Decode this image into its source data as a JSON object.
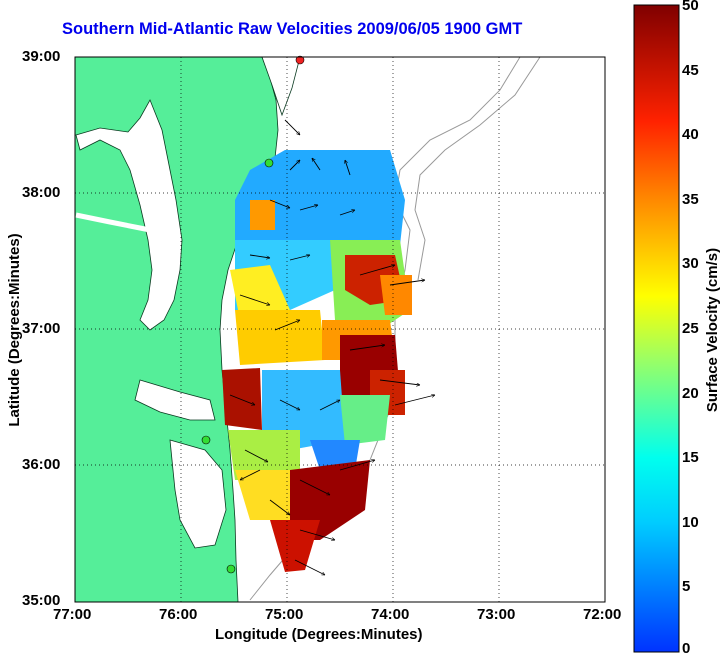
{
  "title": "Southern Mid-Atlantic Raw Velocities 2009/06/05 1900 GMT",
  "x_axis": {
    "label": "Longitude (Degrees:Minutes)",
    "ticks": [
      "77:00",
      "76:00",
      "75:00",
      "74:00",
      "73:00",
      "72:00"
    ]
  },
  "y_axis": {
    "label": "Latitude (Degrees:Minutes)",
    "ticks": [
      "39:00",
      "38:00",
      "37:00",
      "36:00",
      "35:00"
    ]
  },
  "colorbar": {
    "label": "Surface Velocity (cm/s)",
    "ticks": [
      "50",
      "45",
      "40",
      "35",
      "30",
      "25",
      "20",
      "15",
      "10",
      "5",
      "0"
    ],
    "range": [
      0,
      50
    ]
  },
  "colors": {
    "land": "#55ee99",
    "title": "#0000ee",
    "station": "#33dd33"
  }
}
